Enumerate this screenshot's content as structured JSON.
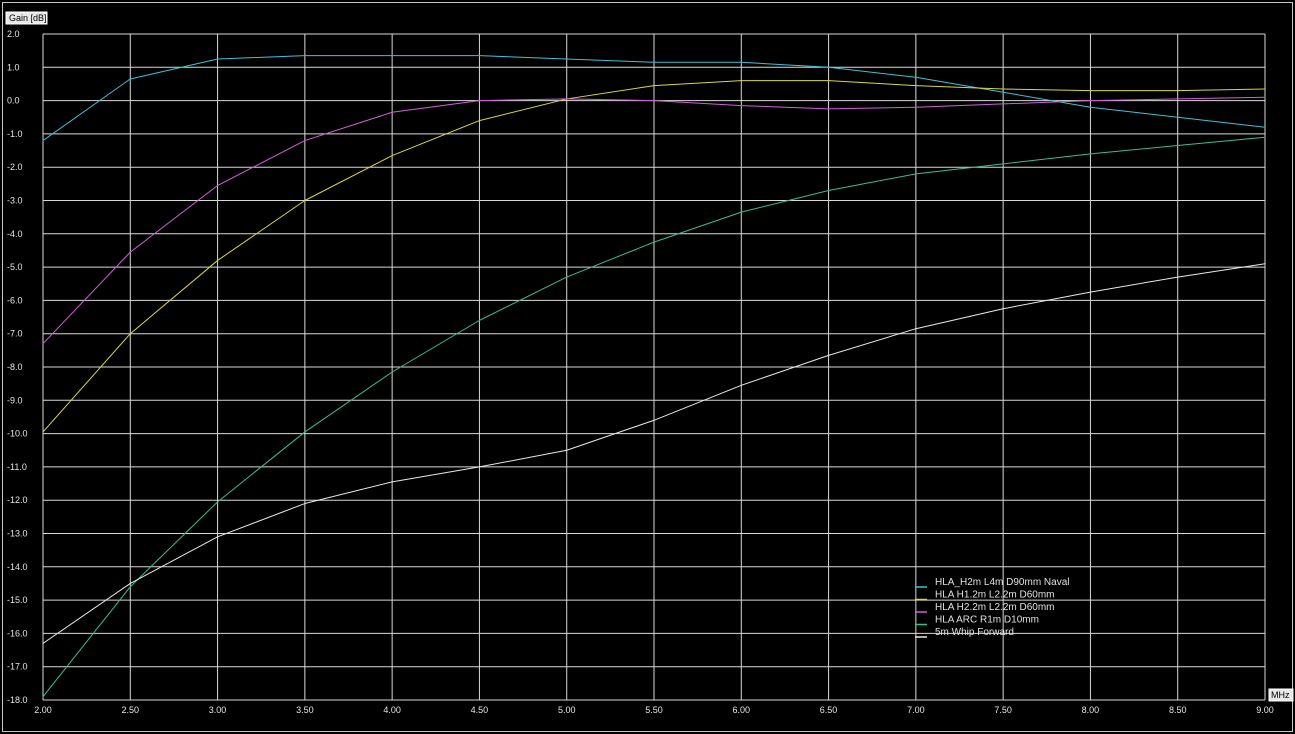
{
  "chart_data": {
    "type": "line",
    "ylabel": "Gain [dB]",
    "xlabel": "MHz",
    "xlim": [
      2.0,
      9.0
    ],
    "ylim": [
      -18.0,
      2.0
    ],
    "grid": true,
    "legend_position": "lower-right",
    "x_ticks": [
      "2.00",
      "2.50",
      "3.00",
      "3.50",
      "4.00",
      "4.50",
      "5.00",
      "5.50",
      "6.00",
      "6.50",
      "7.00",
      "7.50",
      "8.00",
      "8.50",
      "9.00"
    ],
    "y_ticks": [
      "2.0",
      "1.0",
      "0.0",
      "-1.0",
      "-2.0",
      "-3.0",
      "-4.0",
      "-5.0",
      "-6.0",
      "-7.0",
      "-8.0",
      "-9.0",
      "-10.0",
      "-11.0",
      "-12.0",
      "-13.0",
      "-14.0",
      "-15.0",
      "-16.0",
      "-17.0",
      "-18.0"
    ],
    "x": [
      2.0,
      2.5,
      3.0,
      3.5,
      4.0,
      4.5,
      5.0,
      5.5,
      6.0,
      6.5,
      7.0,
      7.5,
      8.0,
      8.5,
      9.0
    ],
    "series": [
      {
        "name": "HLA_H2m L4m D90mm Naval",
        "color": "#40c0d8",
        "values": [
          -1.2,
          0.65,
          1.25,
          1.35,
          1.35,
          1.35,
          1.25,
          1.15,
          1.15,
          1.0,
          0.7,
          0.25,
          -0.2,
          -0.5,
          -0.8
        ]
      },
      {
        "name": "HLA H1.2m L2.2m D60mm",
        "color": "#d8d840",
        "values": [
          -9.95,
          -7.0,
          -4.8,
          -3.0,
          -1.65,
          -0.6,
          0.05,
          0.45,
          0.6,
          0.6,
          0.45,
          0.35,
          0.3,
          0.3,
          0.35
        ]
      },
      {
        "name": "HLA H2.2m L2.2m D60mm",
        "color": "#d060d8",
        "values": [
          -7.3,
          -4.55,
          -2.55,
          -1.2,
          -0.35,
          0.0,
          0.05,
          0.0,
          -0.15,
          -0.25,
          -0.2,
          -0.1,
          0.0,
          0.05,
          0.1
        ]
      },
      {
        "name": "HLA ARC R1m D10mm",
        "color": "#38c088",
        "values": [
          -17.9,
          -14.6,
          -12.05,
          -9.95,
          -8.15,
          -6.6,
          -5.3,
          -4.25,
          -3.35,
          -2.7,
          -2.2,
          -1.9,
          -1.6,
          -1.35,
          -1.1
        ]
      },
      {
        "name": "5m Whip Forward",
        "color": "#e8e8e8",
        "values": [
          -16.3,
          -14.5,
          -13.1,
          -12.1,
          -11.45,
          -11.0,
          -10.5,
          -9.6,
          -8.55,
          -7.65,
          -6.85,
          -6.25,
          -5.75,
          -5.3,
          -4.9
        ]
      }
    ]
  }
}
